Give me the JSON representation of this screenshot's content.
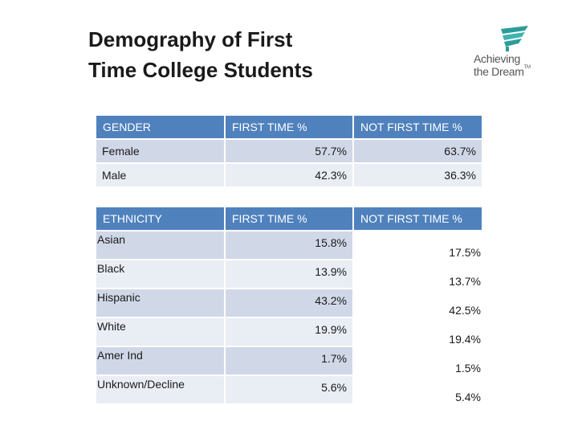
{
  "title_line1": "Demography of First",
  "title_line2": "Time College Students",
  "logo": {
    "line1": "Achieving",
    "line2": "the Dream",
    "tm": "TM"
  },
  "gender_table": {
    "headers": [
      "GENDER",
      "FIRST TIME %",
      "NOT FIRST TIME %"
    ],
    "rows": [
      [
        "Female",
        "57.7%",
        "63.7%"
      ],
      [
        "Male",
        "42.3%",
        "36.3%"
      ]
    ]
  },
  "ethnicity_table": {
    "headers": [
      "ETHNICITY",
      "FIRST TIME %",
      "NOT FIRST TIME %"
    ],
    "rows": [
      [
        "Asian",
        "15.8%",
        "17.5%"
      ],
      [
        "Black",
        "13.9%",
        "13.7%"
      ],
      [
        "Hispanic",
        "43.2%",
        "42.5%"
      ],
      [
        "White",
        "19.9%",
        "19.4%"
      ],
      [
        "Amer Ind",
        "1.7%",
        "1.5%"
      ],
      [
        "Unknown/Decline",
        "5.6%",
        "5.4%"
      ]
    ]
  },
  "colors": {
    "header": "#4f81bd",
    "row_odd": "#d0d8e8",
    "row_even": "#e9edf4",
    "logo_teal": "#2a9d9a"
  }
}
